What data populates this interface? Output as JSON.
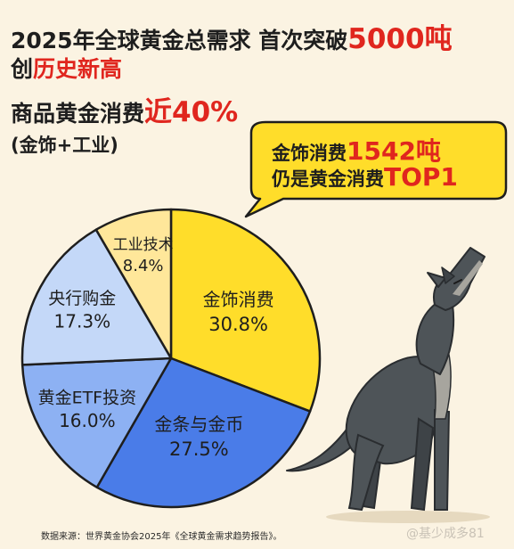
{
  "header": {
    "line1_prefix": "2025年全球黄金总需求 首次突破",
    "line1_highlight": "5000吨",
    "line2_prefix": "创",
    "line2_highlight": "历史新高",
    "line3_prefix": "商品黄金消费",
    "line3_highlight": "近40%",
    "line4": "(金饰+工业)"
  },
  "callout": {
    "line1_prefix": "金饰消费",
    "line1_highlight": "1542吨",
    "line2_prefix": "仍是黄金消费",
    "line2_highlight": "TOP1"
  },
  "chart_data": {
    "type": "pie",
    "slices": [
      {
        "label": "金饰消费",
        "value": 30.8,
        "value_label": "30.8%",
        "color": "#FFDD2A"
      },
      {
        "label": "金条与金币",
        "value": 27.5,
        "value_label": "27.5%",
        "color": "#4A7CE8"
      },
      {
        "label": "黄金ETF投资",
        "value": 16.0,
        "value_label": "16.0%",
        "color": "#8DB1F3"
      },
      {
        "label": "央行购金",
        "value": 17.3,
        "value_label": "17.3%",
        "color": "#C4D8F8"
      },
      {
        "label": "工业技术",
        "value": 8.4,
        "value_label": "8.4%",
        "color": "#FFE79A"
      }
    ]
  },
  "footer": {
    "source": "数据来源：世界黄金协会2025年《全球黄金需求趋势报告》。",
    "watermark": "@基少成多81"
  },
  "colors": {
    "background": "#FBF3E2",
    "accent_red": "#E0261E",
    "wolf_gray": "#4E5458"
  }
}
